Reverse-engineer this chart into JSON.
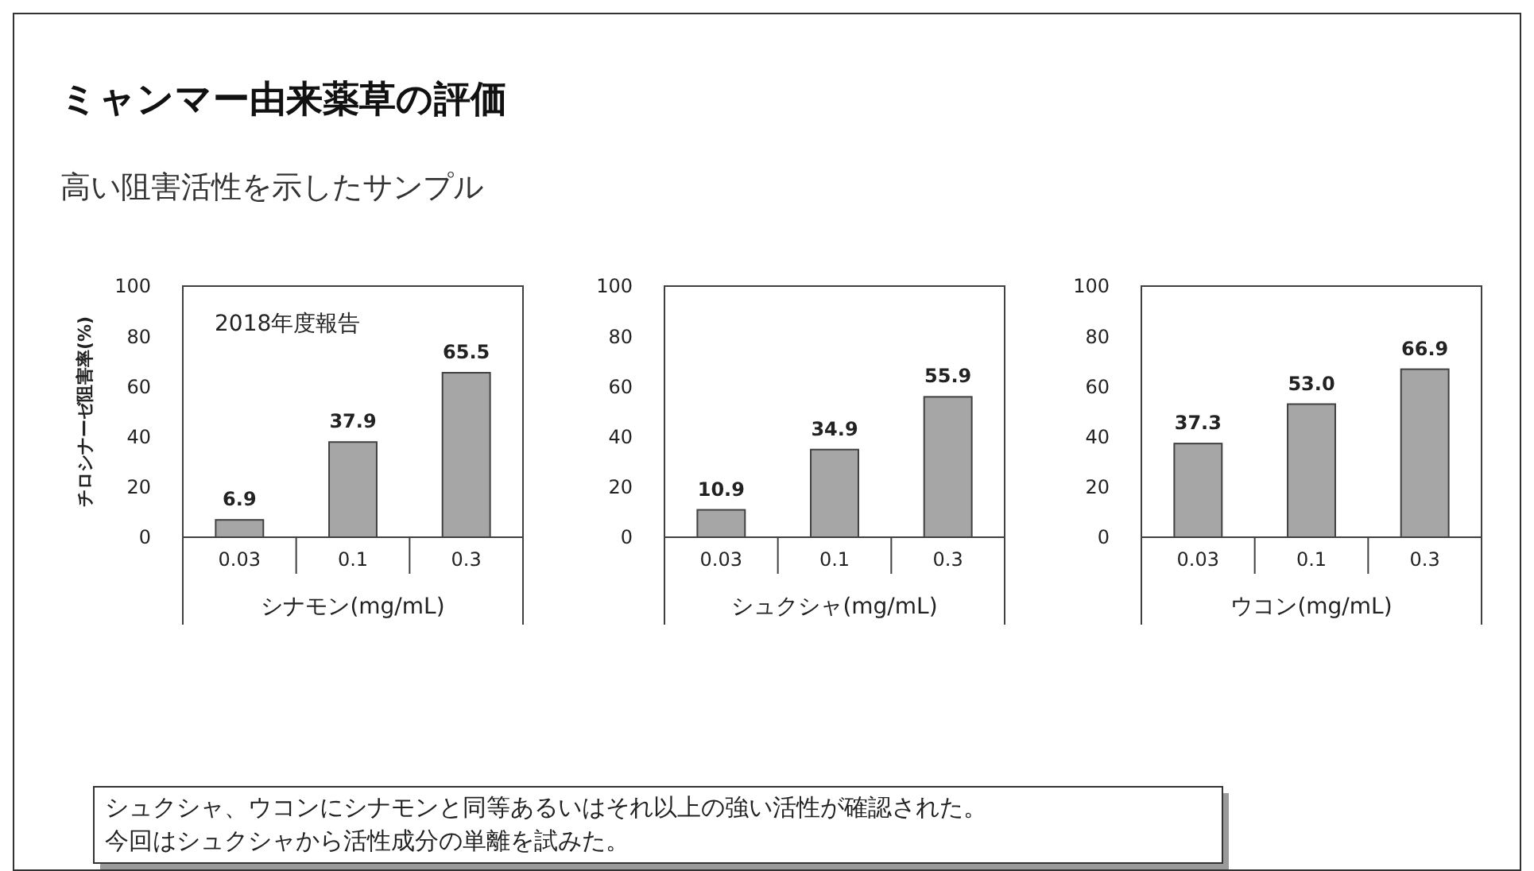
{
  "chart_data": [
    {
      "type": "bar",
      "title": "ミャンマー由来薬草の評価",
      "subtitle": "高い阻害活性を示したサンプル",
      "ylabel": "チロシナーゼ阻害率(%)",
      "xlabel": "シナモン(mg/mL)",
      "categories": [
        "0.03",
        "0.1",
        "0.3"
      ],
      "values": [
        6.9,
        37.9,
        65.5
      ],
      "value_labels": [
        "6.9",
        "37.9",
        "65.5"
      ],
      "color": "#a6a6a6",
      "ylim": [
        0,
        100
      ],
      "yticks": [
        0,
        20,
        40,
        60,
        80,
        100
      ],
      "annotations": [
        "2018年度報告"
      ]
    },
    {
      "type": "bar",
      "xlabel": "シュクシャ(mg/mL)",
      "categories": [
        "0.03",
        "0.1",
        "0.3"
      ],
      "values": [
        10.9,
        34.9,
        55.9
      ],
      "value_labels": [
        "10.9",
        "34.9",
        "55.9"
      ],
      "color": "#a6a6a6",
      "ylim": [
        0,
        100
      ],
      "yticks": [
        0,
        20,
        40,
        60,
        80,
        100
      ]
    },
    {
      "type": "bar",
      "xlabel": "ウコン(mg/mL)",
      "categories": [
        "0.03",
        "0.1",
        "0.3"
      ],
      "values": [
        37.3,
        53.0,
        66.9
      ],
      "value_labels": [
        "37.3",
        "53.0",
        "66.9"
      ],
      "color": "#a6a6a6",
      "ylim": [
        0,
        100
      ],
      "yticks": [
        0,
        20,
        40,
        60,
        80,
        100
      ]
    },
    {
      "type": "other",
      "annotations": [
        "シュクシャ、ウコンにシナモンと同等あるいはそれ以上の強い活性が確認された。",
        "今回はシュクシャから活性成分の単離を試みた。"
      ]
    }
  ]
}
